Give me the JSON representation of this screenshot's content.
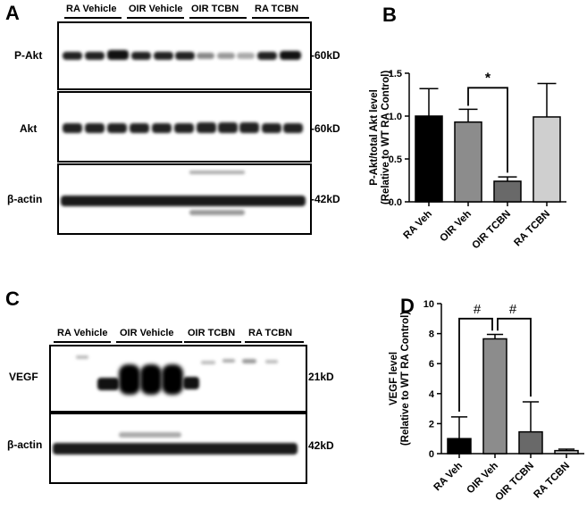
{
  "panels": {
    "A": "A",
    "B": "B",
    "C": "C",
    "D": "D"
  },
  "panelA": {
    "groups": [
      "RA Vehicle",
      "OIR Vehicle",
      "OIR TCBN",
      "RA TCBN"
    ],
    "rows": [
      {
        "label": "P-Akt",
        "mw": "-60kD"
      },
      {
        "label": "Akt",
        "mw": "-60kD"
      },
      {
        "label": "β-actin",
        "mw": "-42kD"
      }
    ]
  },
  "panelC": {
    "groups": [
      "RA Vehicle",
      "OIR Vehicle",
      "OIR TCBN",
      "RA TCBN"
    ],
    "rows": [
      {
        "label": "VEGF",
        "mw": "21kD"
      },
      {
        "label": "β-actin",
        "mw": "42kD"
      }
    ]
  },
  "chart_data": [
    {
      "type": "bar",
      "panel": "B",
      "categories": [
        "RA Veh",
        "OIR Veh",
        "OIR TCBN",
        "RA TCBN"
      ],
      "values": [
        1.0,
        0.93,
        0.24,
        0.99
      ],
      "errors": [
        0.32,
        0.15,
        0.05,
        0.39
      ],
      "colors": [
        "#000000",
        "#8c8c8c",
        "#696969",
        "#cfcfcf"
      ],
      "ylabel": "P-Akt/total Akt level",
      "ylabel2": "(Relative to WT RA Control)",
      "ylim": [
        0,
        1.5
      ],
      "yticks": [
        "0.0",
        "0.5",
        "1.0",
        "1.5"
      ],
      "significance": "*"
    },
    {
      "type": "bar",
      "panel": "D",
      "categories": [
        "RA Veh",
        "OIR Veh",
        "OIR TCBN",
        "RA TCBN"
      ],
      "values": [
        1.0,
        7.65,
        1.45,
        0.2
      ],
      "errors": [
        1.45,
        0.3,
        2.0,
        0.1
      ],
      "colors": [
        "#000000",
        "#8c8c8c",
        "#696969",
        "#cfcfcf"
      ],
      "ylabel": "VEGF level",
      "ylabel2": "(Relative to WT RA Control)",
      "ylim": [
        0,
        10
      ],
      "yticks": [
        "0",
        "2",
        "4",
        "6",
        "8",
        "10"
      ],
      "significance": [
        "#",
        "#"
      ]
    }
  ]
}
